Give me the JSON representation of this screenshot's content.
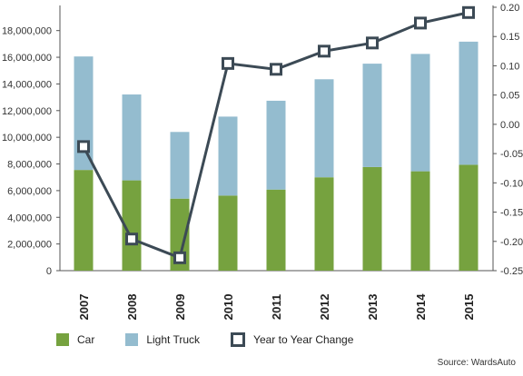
{
  "chart_data": {
    "type": "bar",
    "stacked": true,
    "categories": [
      "2007",
      "2008",
      "2009",
      "2010",
      "2011",
      "2012",
      "2013",
      "2014",
      "2015"
    ],
    "series": [
      {
        "name": "Car",
        "kind": "bar",
        "axis": "left",
        "color": "#76a23f",
        "values": [
          7550000,
          6770000,
          5400000,
          5630000,
          6080000,
          7000000,
          7770000,
          7450000,
          7940000
        ]
      },
      {
        "name": "Light Truck",
        "kind": "bar",
        "axis": "left",
        "color": "#94bccf",
        "values": [
          8510000,
          6440000,
          5000000,
          5920000,
          6660000,
          7350000,
          7750000,
          8800000,
          9230000
        ]
      },
      {
        "name": "Year to Year Change",
        "kind": "line",
        "axis": "right",
        "color": "#3c4a55",
        "values": [
          -0.038,
          -0.196,
          -0.228,
          0.104,
          0.094,
          0.125,
          0.139,
          0.173,
          0.191
        ]
      }
    ],
    "y_left": {
      "ylim": [
        0,
        19000000
      ],
      "ticks": [
        0,
        2000000,
        4000000,
        6000000,
        8000000,
        10000000,
        12000000,
        14000000,
        16000000,
        18000000
      ],
      "tick_labels": [
        "0",
        "2,000,000",
        "4,000,000",
        "6,000,000",
        "8,000,000",
        "10,000,000",
        "12,000,000",
        "14,000,000",
        "16,000,000",
        "18,000,000"
      ]
    },
    "y_right": {
      "ylim": [
        -0.25,
        0.2
      ],
      "ticks": [
        0.2,
        0.15,
        0.1,
        0.05,
        0.0,
        -0.05,
        -0.1,
        -0.15,
        -0.2,
        -0.25
      ],
      "tick_labels": [
        "0.20",
        "0.15",
        "0.10",
        "0.05",
        "0.00",
        "-0.05",
        "-0.10",
        "-0.15",
        "-0.20",
        "-0.25"
      ]
    },
    "grid": false,
    "legend_position": "bottom-left"
  },
  "legend": {
    "car_label": "Car",
    "truck_label": "Light Truck",
    "change_label": "Year to Year Change"
  },
  "source_text": "Source: WardsAuto"
}
